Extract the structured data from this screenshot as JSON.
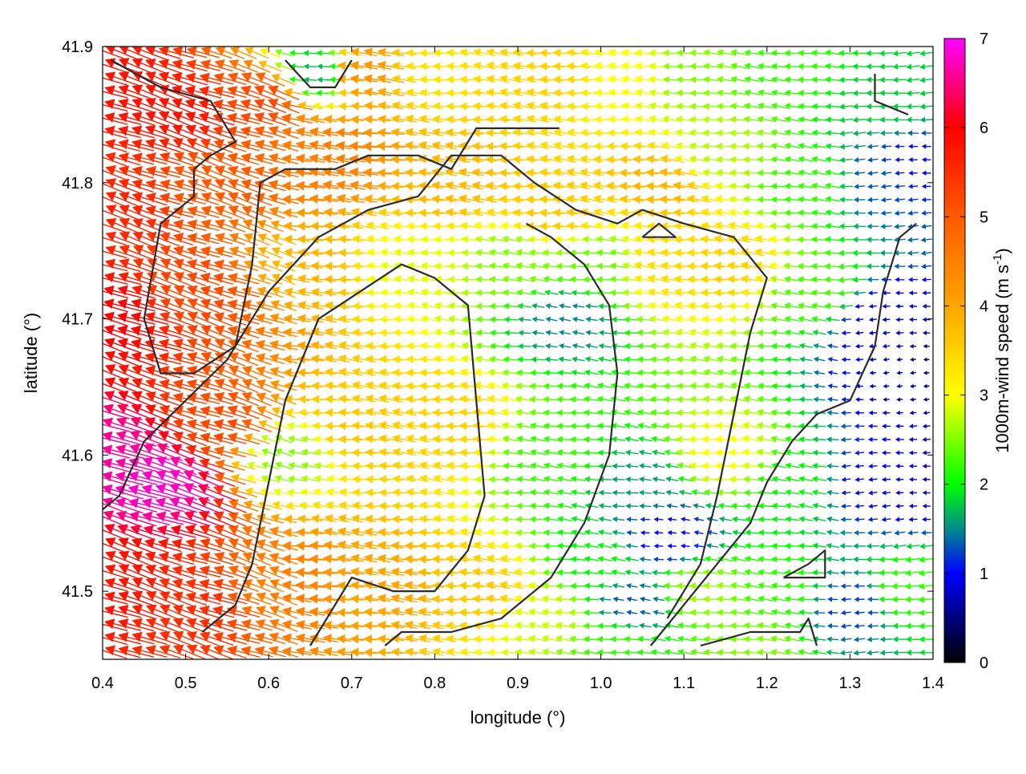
{
  "chart_data": {
    "type": "vector-field",
    "title": "",
    "xlabel": "longitude (°)",
    "ylabel": "latitude (°)",
    "xlim": [
      0.4,
      1.4
    ],
    "ylim": [
      41.45,
      41.9
    ],
    "xticks": [
      {
        "value": 0.4,
        "label": "0.4"
      },
      {
        "value": 0.5,
        "label": "0.5"
      },
      {
        "value": 0.6,
        "label": "0.6"
      },
      {
        "value": 0.7,
        "label": "0.7"
      },
      {
        "value": 0.8,
        "label": "0.8"
      },
      {
        "value": 0.9,
        "label": "0.9"
      },
      {
        "value": 1.0,
        "label": "1.0"
      },
      {
        "value": 1.1,
        "label": "1.1"
      },
      {
        "value": 1.2,
        "label": "1.2"
      },
      {
        "value": 1.3,
        "label": "1.3"
      },
      {
        "value": 1.4,
        "label": "1.4"
      }
    ],
    "yticks": [
      {
        "value": 41.5,
        "label": "41.5"
      },
      {
        "value": 41.6,
        "label": "41.6"
      },
      {
        "value": 41.7,
        "label": "41.7"
      },
      {
        "value": 41.8,
        "label": "41.8"
      },
      {
        "value": 41.9,
        "label": "41.9"
      }
    ],
    "colorbar": {
      "label_main": "1000m-wind speed (m s",
      "label_sup": "-1",
      "label_close": ")",
      "range": [
        0,
        7
      ],
      "ticks": [
        {
          "value": 0,
          "label": "0"
        },
        {
          "value": 1,
          "label": "1"
        },
        {
          "value": 2,
          "label": "2"
        },
        {
          "value": 3,
          "label": "3"
        },
        {
          "value": 4,
          "label": "4"
        },
        {
          "value": 5,
          "label": "5"
        },
        {
          "value": 6,
          "label": "6"
        },
        {
          "value": 7,
          "label": "7"
        }
      ],
      "stops": [
        {
          "value": 0,
          "color": "#000000"
        },
        {
          "value": 1,
          "color": "#0000ff"
        },
        {
          "value": 1.5,
          "color": "#008c8c"
        },
        {
          "value": 2,
          "color": "#00ff00"
        },
        {
          "value": 3,
          "color": "#ffff00"
        },
        {
          "value": 4,
          "color": "#ffa500"
        },
        {
          "value": 5,
          "color": "#ff5a00"
        },
        {
          "value": 6,
          "color": "#ff0000"
        },
        {
          "value": 7,
          "color": "#ff00ff"
        }
      ]
    },
    "wind_speed_anchors": [
      {
        "lon": 0.42,
        "lat": 41.87,
        "speed": 5.8
      },
      {
        "lon": 0.5,
        "lat": 41.85,
        "speed": 5.8
      },
      {
        "lon": 0.6,
        "lat": 41.86,
        "speed": 5.2
      },
      {
        "lon": 0.72,
        "lat": 41.88,
        "speed": 4.2
      },
      {
        "lon": 0.8,
        "lat": 41.88,
        "speed": 3.3
      },
      {
        "lon": 0.66,
        "lat": 41.88,
        "speed": 1.7
      },
      {
        "lon": 0.93,
        "lat": 41.88,
        "speed": 3.5
      },
      {
        "lon": 1.05,
        "lat": 41.88,
        "speed": 3.0
      },
      {
        "lon": 1.1,
        "lat": 41.88,
        "speed": 2.5
      },
      {
        "lon": 1.22,
        "lat": 41.88,
        "speed": 2.2
      },
      {
        "lon": 1.34,
        "lat": 41.86,
        "speed": 1.8
      },
      {
        "lon": 0.42,
        "lat": 41.78,
        "speed": 5.6
      },
      {
        "lon": 0.55,
        "lat": 41.8,
        "speed": 5.0
      },
      {
        "lon": 0.68,
        "lat": 41.82,
        "speed": 4.5
      },
      {
        "lon": 0.82,
        "lat": 41.8,
        "speed": 3.8
      },
      {
        "lon": 0.95,
        "lat": 41.78,
        "speed": 3.6
      },
      {
        "lon": 1.08,
        "lat": 41.8,
        "speed": 3.8
      },
      {
        "lon": 1.14,
        "lat": 41.82,
        "speed": 2.7
      },
      {
        "lon": 1.25,
        "lat": 41.8,
        "speed": 2.2
      },
      {
        "lon": 1.34,
        "lat": 41.8,
        "speed": 1.3
      },
      {
        "lon": 1.38,
        "lat": 41.81,
        "speed": 1.0
      },
      {
        "lon": 0.42,
        "lat": 41.7,
        "speed": 6.0
      },
      {
        "lon": 0.52,
        "lat": 41.72,
        "speed": 5.2
      },
      {
        "lon": 0.64,
        "lat": 41.74,
        "speed": 3.8
      },
      {
        "lon": 0.78,
        "lat": 41.74,
        "speed": 2.9
      },
      {
        "lon": 0.9,
        "lat": 41.74,
        "speed": 2.5
      },
      {
        "lon": 0.96,
        "lat": 41.7,
        "speed": 1.5
      },
      {
        "lon": 1.0,
        "lat": 41.74,
        "speed": 2.4
      },
      {
        "lon": 1.08,
        "lat": 41.74,
        "speed": 3.4
      },
      {
        "lon": 1.16,
        "lat": 41.74,
        "speed": 3.5
      },
      {
        "lon": 1.26,
        "lat": 41.72,
        "speed": 2.3
      },
      {
        "lon": 1.34,
        "lat": 41.7,
        "speed": 0.8
      },
      {
        "lon": 1.38,
        "lat": 41.66,
        "speed": 0.5
      },
      {
        "lon": 0.42,
        "lat": 41.6,
        "speed": 6.6
      },
      {
        "lon": 0.48,
        "lat": 41.58,
        "speed": 6.8
      },
      {
        "lon": 0.55,
        "lat": 41.62,
        "speed": 5.2
      },
      {
        "lon": 0.62,
        "lat": 41.6,
        "speed": 2.5
      },
      {
        "lon": 0.72,
        "lat": 41.62,
        "speed": 3.6
      },
      {
        "lon": 0.82,
        "lat": 41.62,
        "speed": 3.5
      },
      {
        "lon": 0.94,
        "lat": 41.6,
        "speed": 2.2
      },
      {
        "lon": 1.05,
        "lat": 41.58,
        "speed": 1.6
      },
      {
        "lon": 1.08,
        "lat": 41.54,
        "speed": 1.0
      },
      {
        "lon": 1.15,
        "lat": 41.6,
        "speed": 3.0
      },
      {
        "lon": 1.24,
        "lat": 41.58,
        "speed": 2.0
      },
      {
        "lon": 1.32,
        "lat": 41.58,
        "speed": 1.0
      },
      {
        "lon": 1.38,
        "lat": 41.58,
        "speed": 0.8
      },
      {
        "lon": 0.42,
        "lat": 41.5,
        "speed": 5.8
      },
      {
        "lon": 0.52,
        "lat": 41.49,
        "speed": 5.5
      },
      {
        "lon": 0.62,
        "lat": 41.5,
        "speed": 4.5
      },
      {
        "lon": 0.74,
        "lat": 41.5,
        "speed": 4.0
      },
      {
        "lon": 0.86,
        "lat": 41.5,
        "speed": 3.6
      },
      {
        "lon": 0.94,
        "lat": 41.48,
        "speed": 2.8
      },
      {
        "lon": 1.0,
        "lat": 41.52,
        "speed": 2.0
      },
      {
        "lon": 1.04,
        "lat": 41.49,
        "speed": 1.3
      },
      {
        "lon": 1.12,
        "lat": 41.5,
        "speed": 2.6
      },
      {
        "lon": 1.22,
        "lat": 41.5,
        "speed": 2.2
      },
      {
        "lon": 1.3,
        "lat": 41.49,
        "speed": 1.2
      },
      {
        "lon": 1.37,
        "lat": 41.5,
        "speed": 2.2
      },
      {
        "lon": 1.02,
        "lat": 41.46,
        "speed": 2.2
      },
      {
        "lon": 1.18,
        "lat": 41.46,
        "speed": 2.5
      }
    ],
    "contours": [
      {
        "name": "contour-west",
        "points": [
          [
            0.41,
            41.89
          ],
          [
            0.47,
            41.87
          ],
          [
            0.53,
            41.86
          ],
          [
            0.56,
            41.83
          ],
          [
            0.53,
            41.82
          ],
          [
            0.51,
            41.81
          ],
          [
            0.51,
            41.79
          ],
          [
            0.47,
            41.77
          ],
          [
            0.45,
            41.7
          ],
          [
            0.47,
            41.66
          ],
          [
            0.51,
            41.66
          ],
          [
            0.56,
            41.68
          ],
          [
            0.58,
            41.74
          ],
          [
            0.59,
            41.8
          ],
          [
            0.62,
            41.81
          ],
          [
            0.68,
            41.81
          ],
          [
            0.72,
            41.82
          ],
          [
            0.78,
            41.82
          ],
          [
            0.82,
            41.81
          ],
          [
            0.85,
            41.84
          ],
          [
            0.9,
            41.84
          ],
          [
            0.95,
            41.84
          ]
        ]
      },
      {
        "name": "contour-southwest",
        "points": [
          [
            0.4,
            41.56
          ],
          [
            0.42,
            41.57
          ],
          [
            0.45,
            41.61
          ],
          [
            0.5,
            41.64
          ],
          [
            0.55,
            41.67
          ],
          [
            0.6,
            41.72
          ],
          [
            0.66,
            41.76
          ],
          [
            0.72,
            41.78
          ],
          [
            0.78,
            41.79
          ],
          [
            0.82,
            41.82
          ],
          [
            0.88,
            41.82
          ],
          [
            0.92,
            41.8
          ],
          [
            0.97,
            41.78
          ],
          [
            1.02,
            41.77
          ],
          [
            1.05,
            41.78
          ],
          [
            1.1,
            41.77
          ],
          [
            1.16,
            41.76
          ],
          [
            1.2,
            41.73
          ],
          [
            1.18,
            41.69
          ],
          [
            1.16,
            41.63
          ],
          [
            1.14,
            41.57
          ],
          [
            1.12,
            41.52
          ],
          [
            1.08,
            41.48
          ]
        ]
      },
      {
        "name": "contour-inner",
        "points": [
          [
            0.65,
            41.46
          ],
          [
            0.7,
            41.51
          ],
          [
            0.75,
            41.5
          ],
          [
            0.8,
            41.5
          ],
          [
            0.84,
            41.53
          ],
          [
            0.86,
            41.57
          ],
          [
            0.85,
            41.64
          ],
          [
            0.84,
            41.71
          ],
          [
            0.8,
            41.73
          ],
          [
            0.76,
            41.74
          ],
          [
            0.71,
            41.72
          ],
          [
            0.66,
            41.7
          ],
          [
            0.62,
            41.64
          ],
          [
            0.6,
            41.58
          ],
          [
            0.58,
            41.52
          ],
          [
            0.56,
            41.49
          ],
          [
            0.52,
            41.47
          ]
        ]
      },
      {
        "name": "contour-center",
        "points": [
          [
            0.91,
            41.77
          ],
          [
            0.94,
            41.76
          ],
          [
            0.98,
            41.74
          ],
          [
            1.01,
            41.71
          ],
          [
            1.02,
            41.66
          ],
          [
            1.01,
            41.6
          ],
          [
            0.98,
            41.55
          ],
          [
            0.94,
            41.51
          ],
          [
            0.88,
            41.48
          ],
          [
            0.82,
            41.47
          ],
          [
            0.76,
            41.47
          ],
          [
            0.74,
            41.46
          ]
        ]
      },
      {
        "name": "contour-east",
        "points": [
          [
            1.06,
            41.46
          ],
          [
            1.1,
            41.49
          ],
          [
            1.14,
            41.52
          ],
          [
            1.18,
            41.55
          ],
          [
            1.2,
            41.58
          ],
          [
            1.23,
            41.61
          ],
          [
            1.26,
            41.63
          ],
          [
            1.3,
            41.64
          ],
          [
            1.33,
            41.68
          ],
          [
            1.34,
            41.72
          ],
          [
            1.36,
            41.76
          ],
          [
            1.38,
            41.77
          ]
        ]
      },
      {
        "name": "contour-southeast",
        "points": [
          [
            1.12,
            41.46
          ],
          [
            1.18,
            41.47
          ],
          [
            1.24,
            41.47
          ],
          [
            1.25,
            41.48
          ],
          [
            1.26,
            41.46
          ]
        ]
      },
      {
        "name": "contour-loop",
        "points": [
          [
            1.22,
            41.51
          ],
          [
            1.25,
            41.52
          ],
          [
            1.27,
            41.53
          ],
          [
            1.27,
            41.51
          ],
          [
            1.24,
            41.51
          ],
          [
            1.22,
            41.51
          ]
        ]
      },
      {
        "name": "contour-north",
        "points": [
          [
            0.62,
            41.89
          ],
          [
            0.65,
            41.87
          ],
          [
            0.68,
            41.87
          ],
          [
            0.7,
            41.89
          ]
        ]
      },
      {
        "name": "contour-northeast",
        "points": [
          [
            1.33,
            41.88
          ],
          [
            1.33,
            41.86
          ],
          [
            1.37,
            41.85
          ]
        ]
      },
      {
        "name": "contour-small-ring",
        "points": [
          [
            1.05,
            41.76
          ],
          [
            1.07,
            41.77
          ],
          [
            1.09,
            41.76
          ],
          [
            1.07,
            41.76
          ],
          [
            1.05,
            41.76
          ]
        ]
      }
    ]
  }
}
